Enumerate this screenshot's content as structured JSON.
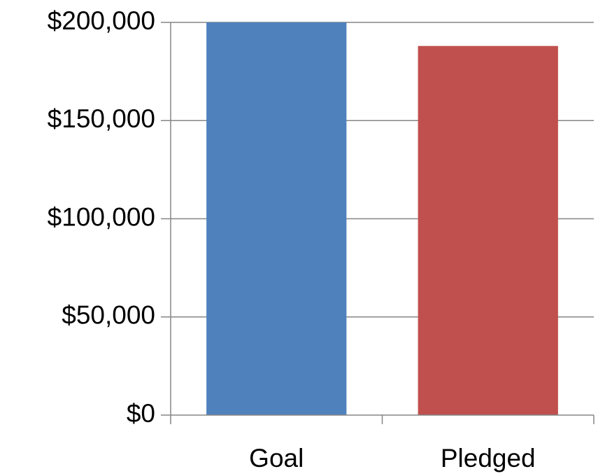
{
  "chart_data": {
    "type": "bar",
    "categories": [
      "Goal",
      "Pledged"
    ],
    "values": [
      200000,
      188000
    ],
    "colors": [
      "#4f81bd",
      "#c0504d"
    ],
    "ylim": [
      0,
      200000
    ],
    "yticks": [
      0,
      50000,
      100000,
      150000,
      200000
    ],
    "ytick_labels": [
      "$0",
      "$50,000",
      "$100,000",
      "$150,000",
      "$200,000"
    ],
    "grid": true,
    "legend": "none",
    "title": "",
    "xlabel": "",
    "ylabel": ""
  }
}
